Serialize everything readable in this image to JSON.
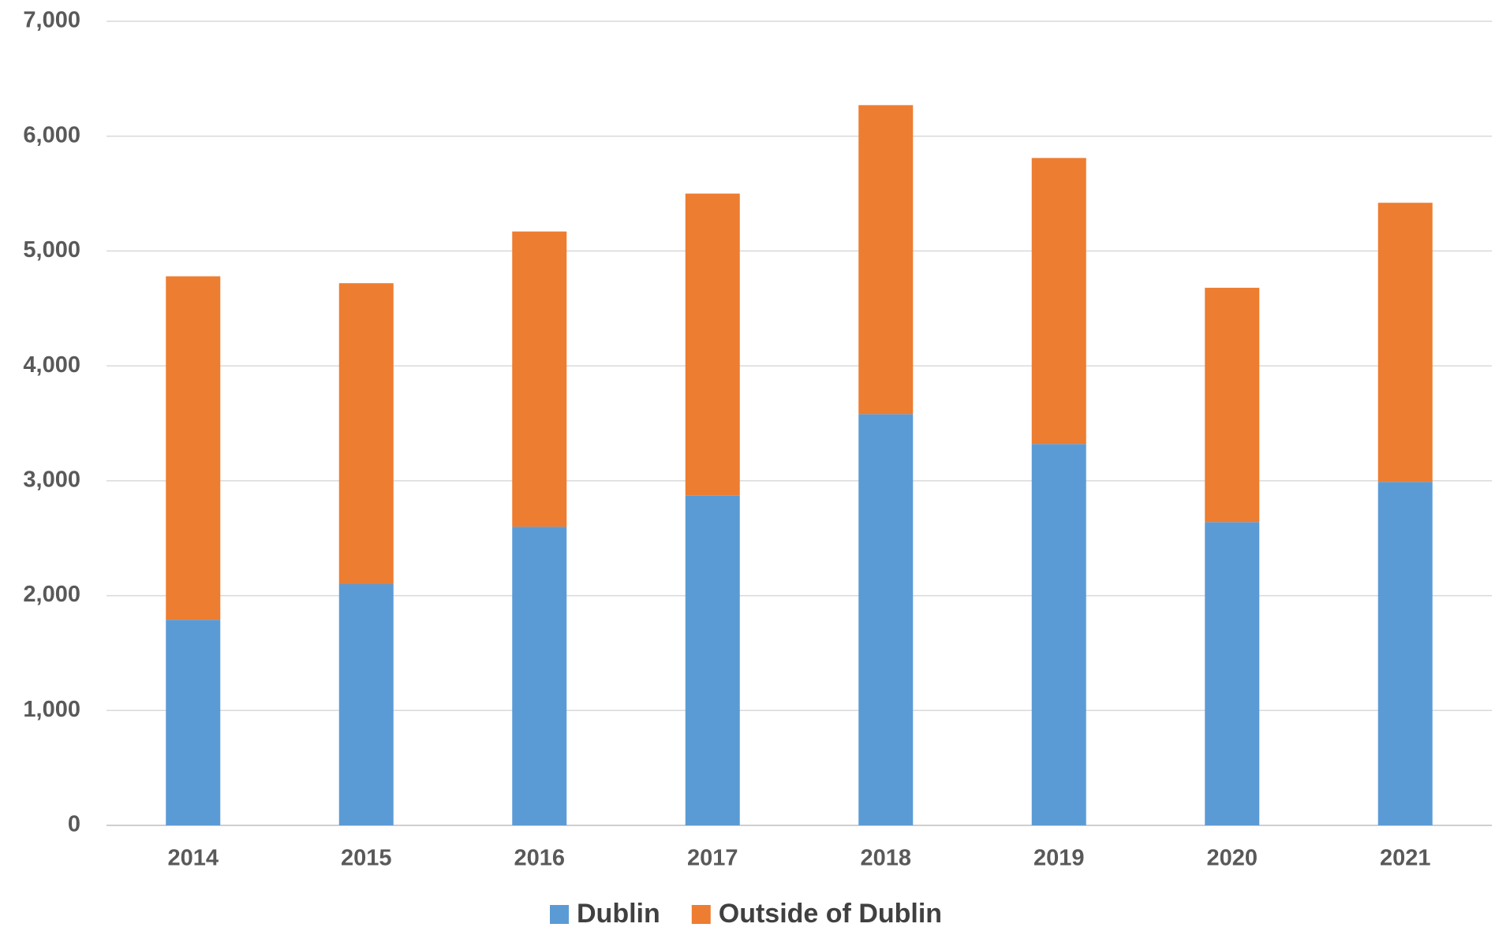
{
  "chart_data": {
    "type": "stacked_bar",
    "categories": [
      "2014",
      "2015",
      "2016",
      "2017",
      "2018",
      "2019",
      "2020",
      "2021"
    ],
    "series": [
      {
        "name": "Dublin",
        "color": "#5b9bd5",
        "values": [
          1790,
          2100,
          2600,
          2870,
          3580,
          3320,
          2640,
          2990
        ]
      },
      {
        "name": "Outside of Dublin",
        "color": "#ed7d31",
        "values": [
          2990,
          2620,
          2570,
          2630,
          2690,
          2490,
          2040,
          2430
        ]
      }
    ],
    "ylim": [
      0,
      7000
    ],
    "yticks": [
      0,
      {
        "value": 1000,
        "label": "1,000"
      },
      {
        "value": 2000,
        "label": "2,000"
      },
      {
        "value": 3000,
        "label": "3,000"
      },
      {
        "value": 4000,
        "label": "4,000"
      },
      {
        "value": 5000,
        "label": "5,000"
      },
      {
        "value": 6000,
        "label": "6,000"
      },
      {
        "value": 7000,
        "label": "7,000"
      }
    ],
    "grid": true,
    "legend": "bottom"
  }
}
